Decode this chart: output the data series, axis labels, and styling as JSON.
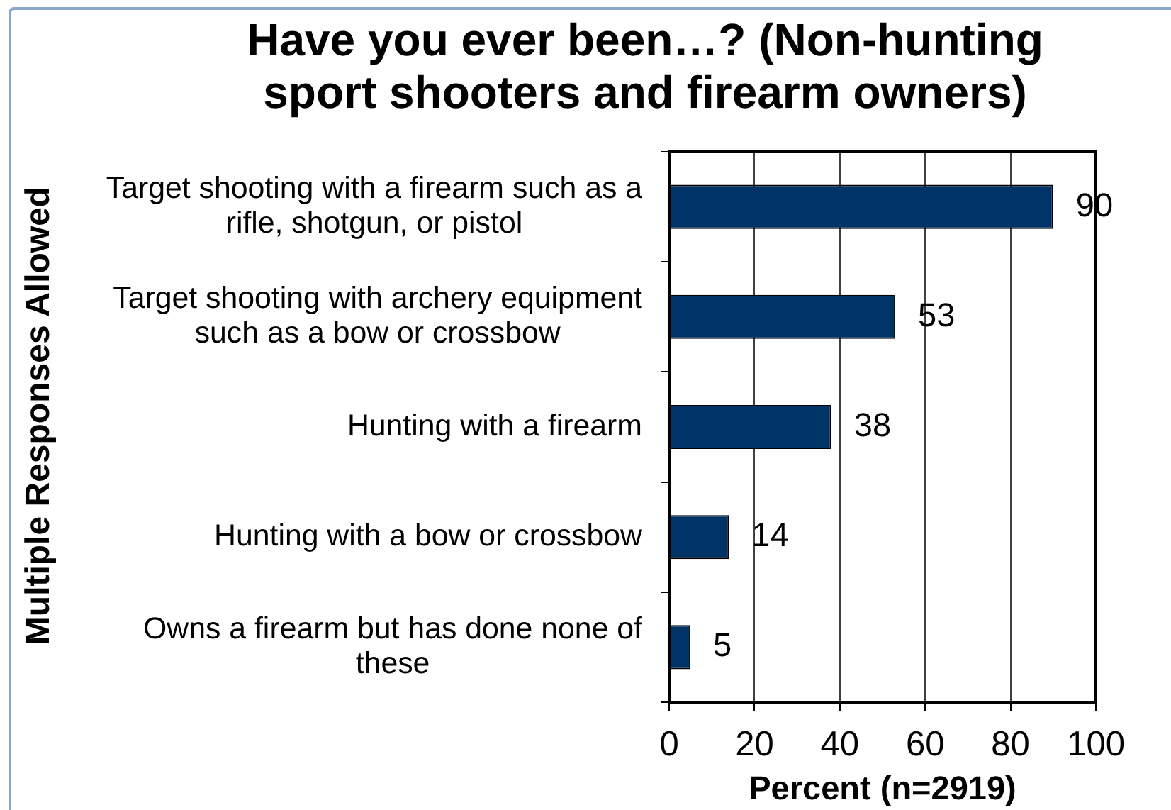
{
  "chart_data": {
    "type": "bar",
    "orientation": "horizontal",
    "title": "Have you ever been…? (Non-hunting sport shooters and firearm owners)",
    "xlabel": "Percent (n=2919)",
    "ylabel": "Multiple Responses Allowed",
    "categories": [
      "Target shooting with a firearm such as a rifle, shotgun, or pistol",
      "Target shooting with archery equipment such as a bow or crossbow",
      "Hunting with a firearm",
      "Hunting with a bow or crossbow",
      "Owns a firearm but has done none of these"
    ],
    "values": [
      90,
      53,
      38,
      14,
      5
    ],
    "color": "#003366",
    "xlim": [
      0,
      100
    ],
    "xticks": [
      0,
      20,
      40,
      60,
      80,
      100
    ],
    "grid": "x",
    "data_labels": true
  }
}
